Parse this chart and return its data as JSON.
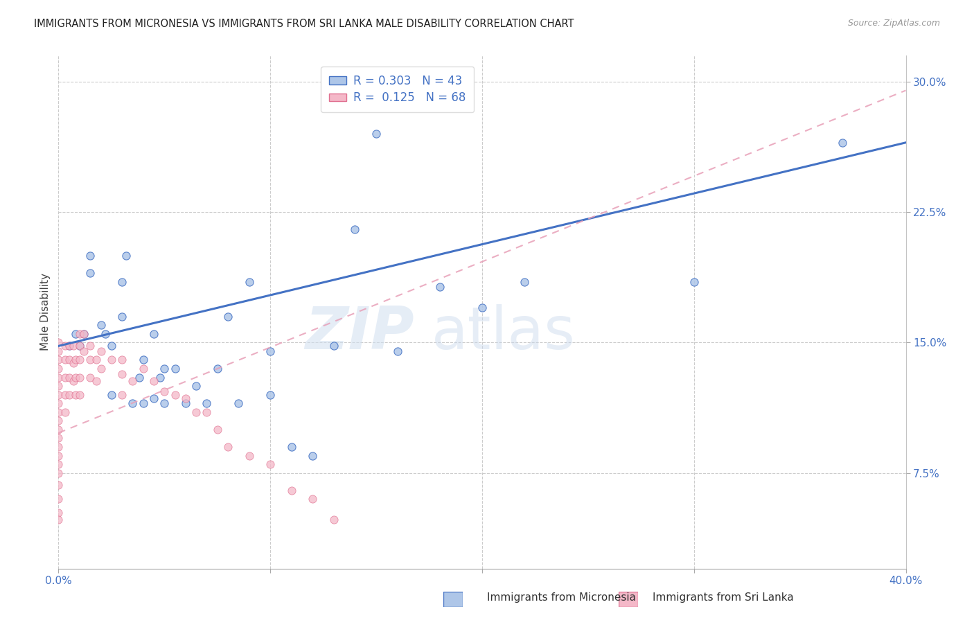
{
  "title": "IMMIGRANTS FROM MICRONESIA VS IMMIGRANTS FROM SRI LANKA MALE DISABILITY CORRELATION CHART",
  "source": "Source: ZipAtlas.com",
  "ylabel": "Male Disability",
  "ytick_vals": [
    0.075,
    0.15,
    0.225,
    0.3
  ],
  "ytick_labels": [
    "7.5%",
    "15.0%",
    "22.5%",
    "30.0%"
  ],
  "xlim": [
    0.0,
    0.4
  ],
  "ylim": [
    0.02,
    0.315
  ],
  "xtick_vals": [
    0.0,
    0.1,
    0.2,
    0.3,
    0.4
  ],
  "xtick_labels": [
    "0.0%",
    "",
    "",
    "",
    "40.0%"
  ],
  "legend1_label": "R = 0.303   N = 43",
  "legend2_label": "R =  0.125   N = 68",
  "color_micronesia_fill": "#aec6e8",
  "color_micronesia_edge": "#4472c4",
  "color_srilanka_fill": "#f4b8c8",
  "color_srilanka_edge": "#e07090",
  "color_micronesia_line": "#4472c4",
  "color_srilanka_line": "#e8a0b8",
  "color_text_blue": "#4472c4",
  "color_grid": "#cccccc",
  "color_bg": "#ffffff",
  "micronesia_x": [
    0.005,
    0.008,
    0.01,
    0.012,
    0.015,
    0.015,
    0.02,
    0.022,
    0.025,
    0.025,
    0.03,
    0.03,
    0.032,
    0.035,
    0.038,
    0.04,
    0.04,
    0.045,
    0.045,
    0.048,
    0.05,
    0.05,
    0.055,
    0.06,
    0.065,
    0.07,
    0.075,
    0.08,
    0.085,
    0.09,
    0.1,
    0.1,
    0.11,
    0.12,
    0.13,
    0.14,
    0.15,
    0.16,
    0.18,
    0.2,
    0.22,
    0.3,
    0.37
  ],
  "micronesia_y": [
    0.148,
    0.155,
    0.148,
    0.155,
    0.19,
    0.2,
    0.16,
    0.155,
    0.12,
    0.148,
    0.165,
    0.185,
    0.2,
    0.115,
    0.13,
    0.115,
    0.14,
    0.155,
    0.118,
    0.13,
    0.135,
    0.115,
    0.135,
    0.115,
    0.125,
    0.115,
    0.135,
    0.165,
    0.115,
    0.185,
    0.12,
    0.145,
    0.09,
    0.085,
    0.148,
    0.215,
    0.27,
    0.145,
    0.182,
    0.17,
    0.185,
    0.185,
    0.265
  ],
  "srilanka_x": [
    0.0,
    0.0,
    0.0,
    0.0,
    0.0,
    0.0,
    0.0,
    0.0,
    0.0,
    0.0,
    0.0,
    0.0,
    0.0,
    0.0,
    0.0,
    0.0,
    0.0,
    0.0,
    0.0,
    0.0,
    0.003,
    0.003,
    0.003,
    0.003,
    0.003,
    0.005,
    0.005,
    0.005,
    0.005,
    0.007,
    0.007,
    0.007,
    0.008,
    0.008,
    0.008,
    0.01,
    0.01,
    0.01,
    0.01,
    0.01,
    0.012,
    0.012,
    0.015,
    0.015,
    0.015,
    0.018,
    0.018,
    0.02,
    0.02,
    0.025,
    0.03,
    0.03,
    0.03,
    0.035,
    0.04,
    0.045,
    0.05,
    0.055,
    0.06,
    0.065,
    0.07,
    0.075,
    0.08,
    0.09,
    0.1,
    0.11,
    0.12,
    0.13
  ],
  "srilanka_y": [
    0.15,
    0.145,
    0.14,
    0.135,
    0.13,
    0.125,
    0.12,
    0.115,
    0.11,
    0.105,
    0.1,
    0.095,
    0.09,
    0.085,
    0.08,
    0.075,
    0.068,
    0.06,
    0.052,
    0.048,
    0.148,
    0.14,
    0.13,
    0.12,
    0.11,
    0.148,
    0.14,
    0.13,
    0.12,
    0.148,
    0.138,
    0.128,
    0.14,
    0.13,
    0.12,
    0.155,
    0.148,
    0.14,
    0.13,
    0.12,
    0.155,
    0.145,
    0.148,
    0.14,
    0.13,
    0.14,
    0.128,
    0.145,
    0.135,
    0.14,
    0.14,
    0.132,
    0.12,
    0.128,
    0.135,
    0.128,
    0.122,
    0.12,
    0.118,
    0.11,
    0.11,
    0.1,
    0.09,
    0.085,
    0.08,
    0.065,
    0.06,
    0.048
  ],
  "watermark_zip": "ZIP",
  "watermark_atlas": "atlas",
  "mic_line_x0": 0.0,
  "mic_line_x1": 0.4,
  "mic_line_y0": 0.148,
  "mic_line_y1": 0.265,
  "sri_line_x0": 0.0,
  "sri_line_x1": 0.4,
  "sri_line_y0": 0.098,
  "sri_line_y1": 0.295
}
